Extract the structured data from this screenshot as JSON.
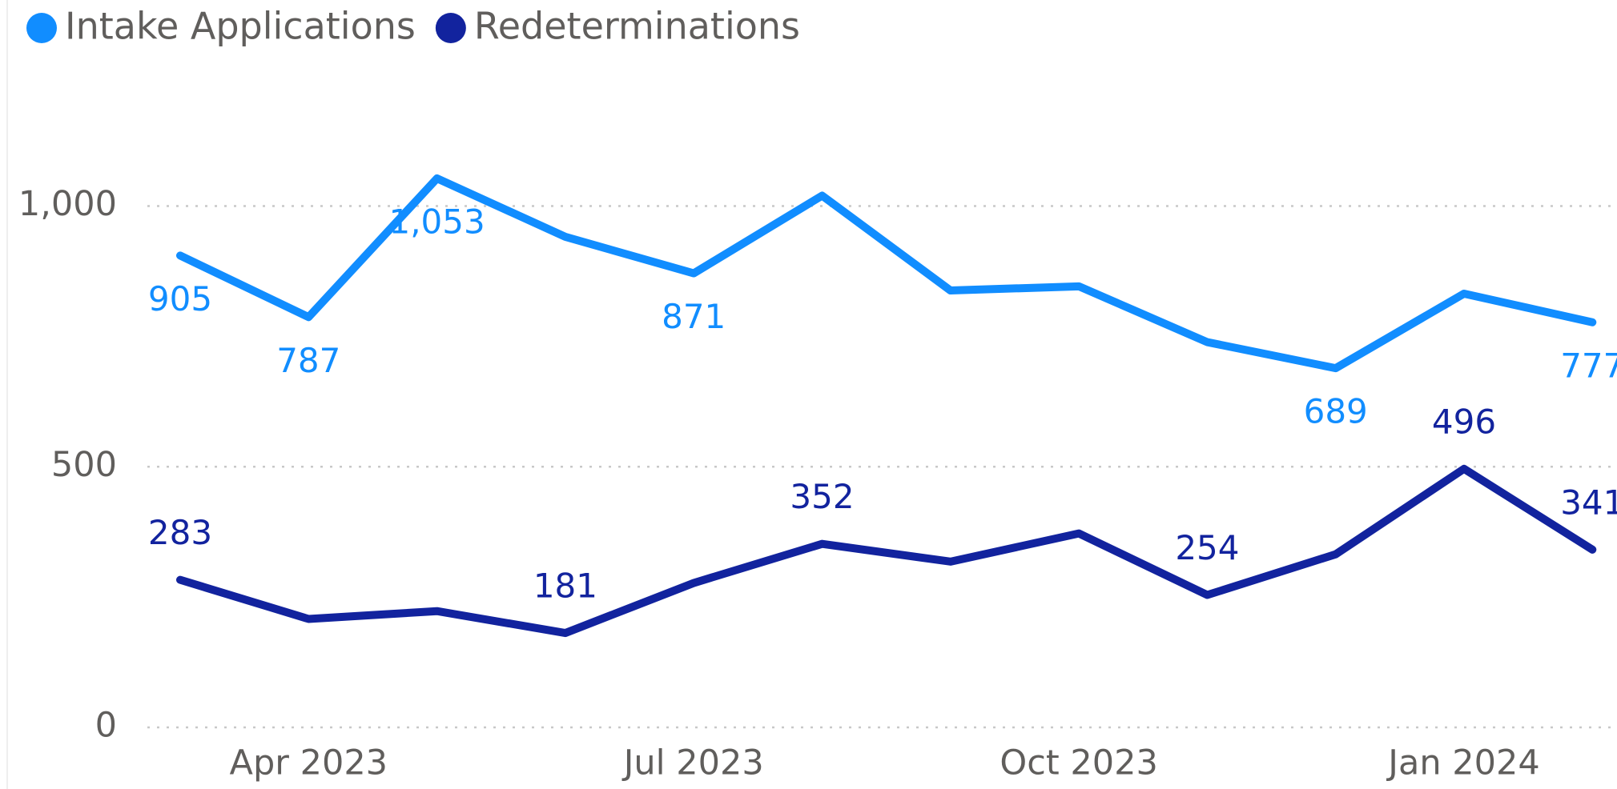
{
  "chart_data": {
    "type": "line",
    "categories": [
      null,
      "Apr 2023",
      null,
      null,
      "Jul 2023",
      null,
      null,
      "Oct 2023",
      null,
      null,
      "Jan 2024",
      null
    ],
    "series": [
      {
        "name": "Intake Applications",
        "color": "#118DFF",
        "values": [
          905,
          787,
          1053,
          941,
          871,
          1020,
          838,
          846,
          739,
          689,
          832,
          777
        ],
        "value_labels": [
          "905",
          "787",
          "1,053",
          null,
          "871",
          null,
          null,
          null,
          null,
          "689",
          null,
          "777"
        ]
      },
      {
        "name": "Redeterminations",
        "color": "#12239E",
        "values": [
          283,
          208,
          223,
          181,
          277,
          352,
          318,
          372,
          254,
          332,
          496,
          341
        ],
        "value_labels": [
          "283",
          null,
          null,
          "181",
          null,
          "352",
          null,
          null,
          "254",
          null,
          "496",
          "341"
        ]
      }
    ],
    "ylim": [
      0,
      1200
    ],
    "yticks": [
      0,
      500,
      {
        "value": 1000,
        "label": "1,000"
      }
    ],
    "grid": true,
    "legend": "top"
  }
}
